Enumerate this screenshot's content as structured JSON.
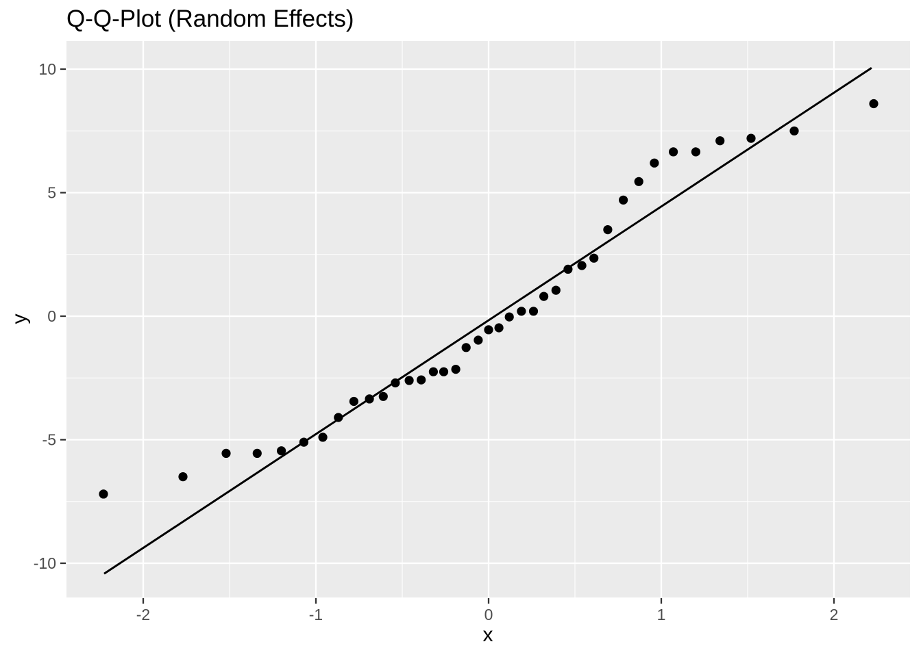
{
  "chart_data": {
    "type": "scatter",
    "title": "Q-Q-Plot (Random Effects)",
    "xlabel": "x",
    "ylabel": "y",
    "grid": "on",
    "legend": "none",
    "xlim": [
      -2.444,
      2.44
    ],
    "ylim": [
      -11.38,
      11.14
    ],
    "x_ticks": [
      -2,
      -1,
      0,
      1,
      2
    ],
    "x_tick_labels": [
      "-2",
      "-1",
      "0",
      "1",
      "2"
    ],
    "x_minor_ticks": [
      -1.5,
      -0.5,
      0.5,
      1.5
    ],
    "y_ticks": [
      -10,
      -5,
      0,
      5,
      10
    ],
    "y_tick_labels": [
      "-10",
      "-5",
      "0",
      "5",
      "10"
    ],
    "y_minor_ticks": [
      -7.5,
      -2.5,
      2.5,
      7.5
    ],
    "points": [
      [
        -2.23,
        -7.2
      ],
      [
        -1.77,
        -6.5
      ],
      [
        -1.52,
        -5.55
      ],
      [
        -1.34,
        -5.55
      ],
      [
        -1.2,
        -5.45
      ],
      [
        -1.07,
        -5.1
      ],
      [
        -0.96,
        -4.9
      ],
      [
        -0.87,
        -4.1
      ],
      [
        -0.78,
        -3.45
      ],
      [
        -0.69,
        -3.35
      ],
      [
        -0.61,
        -3.25
      ],
      [
        -0.54,
        -2.7
      ],
      [
        -0.46,
        -2.6
      ],
      [
        -0.39,
        -2.58
      ],
      [
        -0.32,
        -2.25
      ],
      [
        -0.26,
        -2.25
      ],
      [
        -0.19,
        -2.15
      ],
      [
        -0.13,
        -1.27
      ],
      [
        -0.06,
        -0.97
      ],
      [
        0.0,
        -0.55
      ],
      [
        0.06,
        -0.47
      ],
      [
        0.12,
        -0.03
      ],
      [
        0.19,
        0.2
      ],
      [
        0.26,
        0.2
      ],
      [
        0.32,
        0.8
      ],
      [
        0.39,
        1.05
      ],
      [
        0.46,
        1.9
      ],
      [
        0.54,
        2.05
      ],
      [
        0.61,
        2.35
      ],
      [
        0.69,
        3.5
      ],
      [
        0.78,
        4.7
      ],
      [
        0.87,
        5.45
      ],
      [
        0.96,
        6.2
      ],
      [
        1.07,
        6.65
      ],
      [
        1.2,
        6.65
      ],
      [
        1.34,
        7.1
      ],
      [
        1.52,
        7.2
      ],
      [
        1.77,
        7.5
      ],
      [
        2.23,
        8.6
      ]
    ],
    "reference_line": {
      "x1": -2.226,
      "y1": -10.42,
      "x2": 2.218,
      "y2": 10.05
    },
    "colors": {
      "panel_background": "#ebebeb",
      "gridline": "#ffffff",
      "point": "#000000",
      "line": "#000000",
      "tick_mark": "#333333",
      "tick_label": "#4d4d4d",
      "title": "#000000",
      "figure_background": "#ffffff"
    }
  }
}
